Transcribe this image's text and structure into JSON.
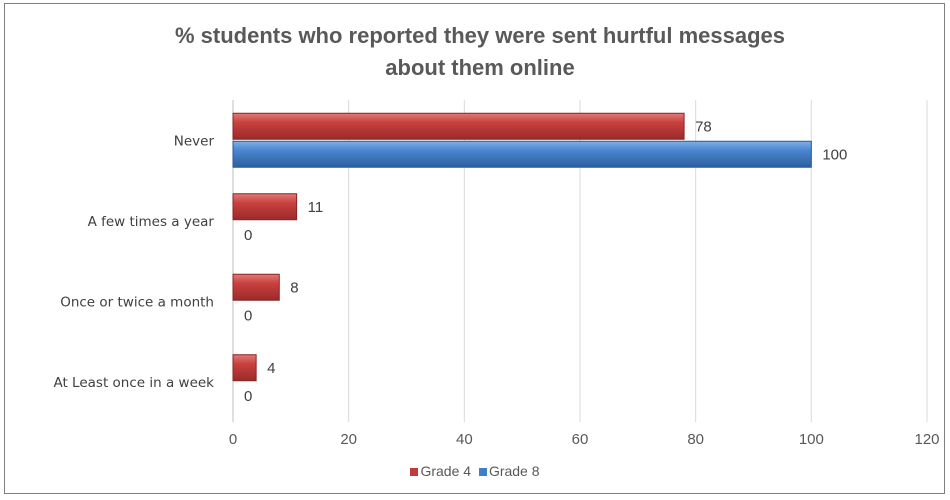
{
  "chart_data": {
    "type": "bar",
    "orientation": "horizontal",
    "title_lines": [
      "% students who reported they were sent hurtful messages",
      "about them online"
    ],
    "categories": [
      "Never",
      "A few times a year",
      "Once or twice a month",
      "At Least once in a week"
    ],
    "series": [
      {
        "name": "Grade 4",
        "color": "#c0393b",
        "values": [
          78,
          11,
          8,
          4
        ]
      },
      {
        "name": "Grade 8",
        "color": "#3f7fc8",
        "values": [
          100,
          0,
          0,
          0
        ]
      }
    ],
    "xlim": [
      0,
      120
    ],
    "xticks": [
      0,
      20,
      40,
      60,
      80,
      100,
      120
    ],
    "grid": true,
    "legend_position": "bottom"
  }
}
